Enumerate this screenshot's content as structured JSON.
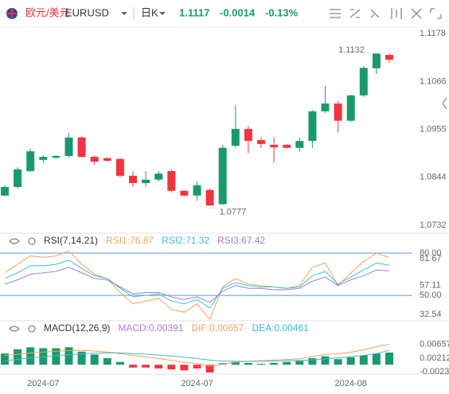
{
  "header": {
    "name": "欧元/美元",
    "symbol": "EURUSD",
    "period": "日K",
    "price": 1.1117,
    "change": -0.0014,
    "change_pct": "-0.13%",
    "price_color": "#1a9a6c"
  },
  "chart_data": [
    {
      "type": "candlestick",
      "categories": [
        null,
        null,
        null,
        "2024-07",
        null,
        null,
        null,
        null,
        null,
        null,
        null,
        null,
        null,
        null,
        null,
        "2024-07",
        null,
        null,
        null,
        null,
        null,
        null,
        null,
        null,
        null,
        null,
        null,
        "2024-08",
        null,
        null,
        null
      ],
      "open": [
        1.0801,
        1.0821,
        1.0858,
        1.0884,
        1.0889,
        1.0893,
        1.0936,
        1.0891,
        1.0888,
        1.0886,
        1.0847,
        1.083,
        1.0838,
        1.0858,
        1.0812,
        1.0801,
        1.0814,
        1.0781,
        1.0917,
        1.0956,
        1.093,
        1.0919,
        1.0919,
        1.0912,
        1.0928,
        1.0997,
        1.1015,
        1.0975,
        1.1034,
        1.1097,
        1.1128
      ],
      "high": [
        1.0825,
        1.0867,
        1.091,
        1.0895,
        1.0895,
        1.0947,
        1.0939,
        1.0895,
        1.0891,
        1.0889,
        1.0858,
        1.0858,
        1.0858,
        1.0862,
        1.0814,
        1.0834,
        1.0817,
        1.0919,
        1.1011,
        1.0963,
        1.0936,
        1.0937,
        1.0921,
        1.0936,
        1.1,
        1.1056,
        1.1021,
        1.1036,
        1.1102,
        1.1132,
        1.113
      ],
      "low": [
        1.0799,
        1.0817,
        1.0856,
        1.0878,
        1.0886,
        1.0889,
        1.0889,
        1.0873,
        1.088,
        1.0843,
        1.0821,
        1.0821,
        1.0834,
        1.0808,
        1.0799,
        1.0789,
        1.0777,
        1.0779,
        1.0913,
        1.09,
        1.0912,
        1.0878,
        1.091,
        1.0904,
        1.0912,
        1.0993,
        1.0947,
        1.0972,
        1.103,
        1.1084,
        1.111
      ],
      "close": [
        1.0821,
        1.0862,
        1.0904,
        1.0891,
        1.0893,
        1.0936,
        1.0891,
        1.088,
        1.0882,
        1.0847,
        1.083,
        1.0838,
        1.0852,
        1.0812,
        1.0801,
        1.0825,
        1.0778,
        1.0912,
        1.0956,
        1.0928,
        1.0921,
        1.0913,
        1.0912,
        1.0928,
        1.0997,
        1.1015,
        1.0975,
        1.1034,
        1.1098,
        1.1131,
        1.1117
      ],
      "up_color": "#1a9a6c",
      "down_color": "#f0353f",
      "ylim": [
        1.0719,
        1.1191
      ],
      "yticks": [
        1.0732,
        1.0844,
        1.0955,
        1.1066,
        1.1178
      ],
      "tick_colors": [
        "#1a9a6c",
        "#1a9a6c",
        "#1a9a6c",
        "#1a9a6c",
        "#e8353e"
      ],
      "annotations": [
        {
          "label": "1.1132",
          "value": 1.1132
        },
        {
          "label": "1.0777",
          "value": 1.0777
        }
      ]
    },
    {
      "type": "line",
      "title": "RSI(7,14,21)",
      "series": [
        {
          "name": "RSI1:76.87",
          "color": "#f5a25d",
          "values": [
            66,
            72,
            78,
            77,
            78,
            81.5,
            72,
            65,
            62,
            52,
            44,
            46,
            48,
            40,
            38,
            44,
            33,
            56,
            62,
            58,
            57,
            56,
            55,
            57,
            70,
            73,
            57,
            66,
            74,
            80,
            76.87
          ]
        },
        {
          "name": "RSI2:71.32",
          "color": "#3cc3c9",
          "values": [
            62,
            66,
            71,
            71,
            72,
            75,
            69,
            64,
            62,
            55,
            49,
            50,
            51,
            46,
            44,
            47,
            41,
            55,
            59,
            57,
            56,
            56,
            55,
            56,
            64,
            67,
            58,
            63,
            68,
            73,
            71.32
          ]
        },
        {
          "name": "RSI3:67.42",
          "color": "#9b7fd6",
          "values": [
            58,
            61,
            65,
            66,
            67,
            70,
            66,
            62,
            61,
            56,
            51,
            52,
            52,
            49,
            47,
            49,
            45,
            53,
            57,
            55,
            55,
            54,
            54,
            55,
            60,
            63,
            57,
            61,
            64,
            68,
            67.42
          ]
        }
      ],
      "ylim": [
        32.54,
        81.67
      ],
      "yticks": [
        32.54,
        {
          "value": 50,
          "label": "50.00"
        },
        57.11,
        {
          "value": 80,
          "label": "80.00"
        },
        81.67
      ],
      "tick_colors": [
        "#666666",
        "#4a8fd0",
        "#666666",
        "#4a8fd0",
        "#666666"
      ],
      "levels": [
        80,
        50
      ],
      "level_color": "#5b9bd5"
    },
    {
      "type": "combo",
      "title": "MACD(12,26,9)",
      "series": [
        {
          "name": "MACD:0.00391",
          "type": "bar",
          "color": "#1a9a6c",
          "negative_color": "#f0353f",
          "legend_color": "#a680d8",
          "values": [
            0.0036,
            0.005,
            0.0056,
            0.0053,
            0.0053,
            0.0056,
            0.0042,
            0.0033,
            0.0021,
            0.0009,
            -0.0009,
            -0.0009,
            -0.0012,
            -0.0015,
            -0.0018,
            -0.0012,
            -0.0025,
            0.0005,
            0.0009,
            0.0006,
            0.0003,
            0.0006,
            0.0009,
            0.0012,
            0.0021,
            0.0027,
            0.0018,
            0.0024,
            0.003,
            0.0036,
            0.00391
          ]
        },
        {
          "name": "DIF:0.00657",
          "type": "line",
          "color": "#f5a25d",
          "values": [
            0.003,
            0.0033,
            0.0038,
            0.0041,
            0.0043,
            0.0046,
            0.0046,
            0.0044,
            0.0041,
            0.0036,
            0.003,
            0.0025,
            0.002,
            0.0014,
            0.0008,
            0.0004,
            -0.0004,
            0.0002,
            0.0008,
            0.0011,
            0.0013,
            0.0015,
            0.0017,
            0.0019,
            0.0026,
            0.0033,
            0.0035,
            0.004,
            0.0048,
            0.0058,
            0.00657
          ]
        },
        {
          "name": "DEA:0.00461",
          "type": "line",
          "color": "#3fb8d9",
          "values": [
            0.0012,
            0.0018,
            0.0022,
            0.0026,
            0.0029,
            0.0032,
            0.0035,
            0.0037,
            0.0038,
            0.0038,
            0.0036,
            0.0034,
            0.0031,
            0.0028,
            0.0024,
            0.002,
            0.0015,
            0.0012,
            0.0011,
            0.0011,
            0.0011,
            0.0012,
            0.0013,
            0.0014,
            0.0016,
            0.0019,
            0.0022,
            0.0026,
            0.003,
            0.0036,
            0.00461
          ]
        }
      ],
      "ylim": [
        -0.0025,
        0.0085
      ],
      "yticks": [
        -0.00233,
        0.00212,
        0.00657
      ],
      "tick_colors": [
        "#666666",
        "#666666",
        "#666666"
      ]
    }
  ]
}
